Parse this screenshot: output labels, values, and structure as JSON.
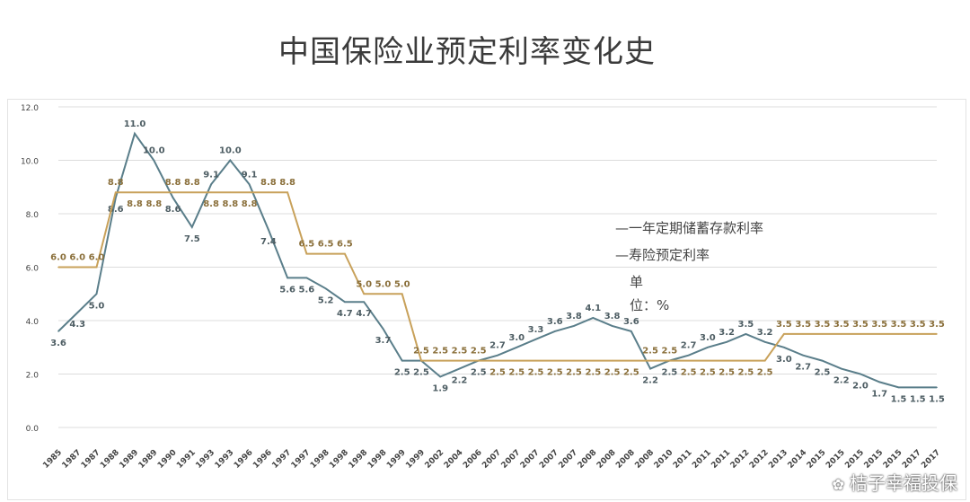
{
  "page": {
    "title": "中国保险业预定利率变化史",
    "watermark": "桔子幸福投保"
  },
  "legend": {
    "savings_label": "—一年定期储蓄存款利率",
    "insurance_label": "—寿险预定利率",
    "unit_line1": "单",
    "unit_line2": "位：%"
  },
  "colors": {
    "savings": "#5a7e8a",
    "insurance": "#c8a15a",
    "grid": "#dcdcdc",
    "label": "#555555"
  },
  "chart_data": {
    "type": "line",
    "x": [
      "1985",
      "1987",
      "1987",
      "1988",
      "1989",
      "1989",
      "1990",
      "1991",
      "1993",
      "1993",
      "1996",
      "1996",
      "1997",
      "1997",
      "1998",
      "1998",
      "1998",
      "1998",
      "1999",
      "1999",
      "2002",
      "2004",
      "2006",
      "2007",
      "2007",
      "2007",
      "2007",
      "2007",
      "2008",
      "2008",
      "2008",
      "2008",
      "2010",
      "2011",
      "2011",
      "2011",
      "2012",
      "2012",
      "2013",
      "2014",
      "2015",
      "2015",
      "2015",
      "2015",
      "2015",
      "2017",
      "2017"
    ],
    "ylim": [
      0,
      12
    ],
    "yticks": [
      "0.0",
      "2.0",
      "4.0",
      "6.0",
      "8.0",
      "10.0",
      "12.0"
    ],
    "series": [
      {
        "name": "一年定期储蓄存款利率",
        "values": [
          3.6,
          4.3,
          5.0,
          8.6,
          11.0,
          10.0,
          8.6,
          7.5,
          9.1,
          10.0,
          9.1,
          7.4,
          5.6,
          5.6,
          5.2,
          4.7,
          4.7,
          3.7,
          2.5,
          2.5,
          1.9,
          2.2,
          2.5,
          2.7,
          3.0,
          3.3,
          3.6,
          3.8,
          4.1,
          3.8,
          3.6,
          2.2,
          2.5,
          2.7,
          3.0,
          3.2,
          3.5,
          3.2,
          3.0,
          2.7,
          2.5,
          2.2,
          2.0,
          1.7,
          1.5,
          1.5,
          1.5
        ],
        "labels": [
          "3.6",
          "4.3",
          "5.0",
          "8.6",
          "11.0",
          "10.0",
          "8.6",
          "7.5",
          "9.1",
          "10.0",
          "9.1",
          "7.4",
          "5.6",
          "5.6",
          "5.2",
          "4.7",
          "4.7",
          "3.7",
          "2.5",
          "2.5",
          "1.9",
          "2.2",
          "2.5",
          "2.7",
          "3.0",
          "3.3",
          "3.6",
          "3.8",
          "4.1",
          "3.8",
          "3.6",
          "2.2",
          "2.5",
          "2.7",
          "3.0",
          "3.2",
          "3.5",
          "3.2",
          "3.0",
          "2.7",
          "2.5",
          "2.2",
          "2.0",
          "1.7",
          "1.5",
          "1.5",
          "1.5"
        ]
      },
      {
        "name": "寿险预定利率",
        "values": [
          6.0,
          6.0,
          6.0,
          8.8,
          8.8,
          8.8,
          8.8,
          8.8,
          8.8,
          8.8,
          8.8,
          8.8,
          8.8,
          6.5,
          6.5,
          6.5,
          5.0,
          5.0,
          5.0,
          2.5,
          2.5,
          2.5,
          2.5,
          2.5,
          2.5,
          2.5,
          2.5,
          2.5,
          2.5,
          2.5,
          2.5,
          2.5,
          2.5,
          2.5,
          2.5,
          2.5,
          2.5,
          2.5,
          3.5,
          3.5,
          3.5,
          3.5,
          3.5,
          3.5,
          3.5,
          3.5,
          3.5
        ],
        "labels": [
          "6.0",
          "6.0",
          "6.0",
          "8.8",
          "8.8",
          "8.8",
          "8.8",
          "8.8",
          "8.8",
          "8.8",
          "8.8",
          "8.8",
          "8.8",
          "6.5",
          "6.5",
          "6.5",
          "5.0",
          "5.0",
          "5.0",
          "2.5",
          "2.5",
          "2.5",
          "2.5",
          "2.5",
          "2.5",
          "2.5",
          "2.5",
          "2.5",
          "2.5",
          "2.5",
          "2.5",
          "2.5",
          "2.5",
          "2.5",
          "2.5",
          "2.5",
          "2.5",
          "2.5",
          "3.5",
          "3.5",
          "3.5",
          "3.5",
          "3.5",
          "3.5",
          "3.5",
          "3.5",
          "3.5"
        ]
      }
    ]
  }
}
